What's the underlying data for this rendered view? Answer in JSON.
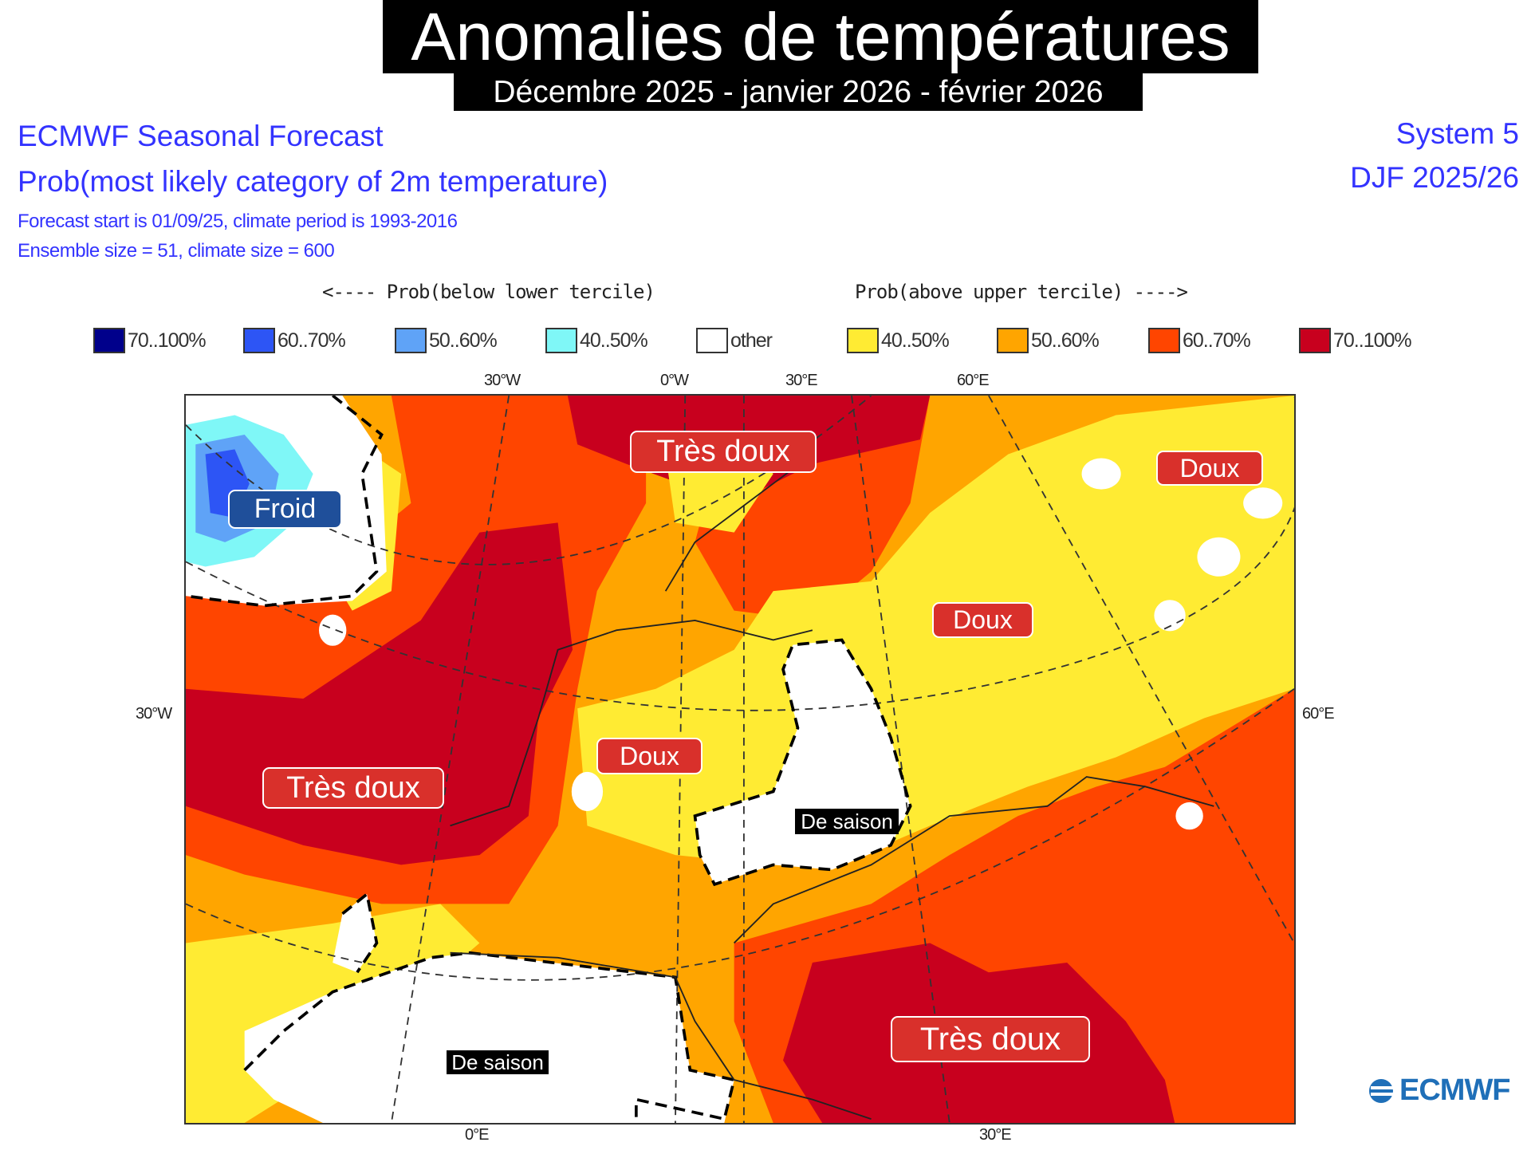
{
  "header": {
    "title": "Anomalies de températures",
    "subtitle": "Décembre 2025 - janvier 2026 - février 2026"
  },
  "info": {
    "line1": "ECMWF Seasonal Forecast",
    "line2": "Prob(most likely category of 2m temperature)",
    "line3": "Forecast start is 01/09/25, climate period is 1993-2016",
    "line4": "Ensemble size = 51, climate size = 600",
    "system": "System 5",
    "season": "DJF 2025/26"
  },
  "legend": {
    "below_label": "<---- Prob(below lower tercile)",
    "above_label": "Prob(above upper tercile) ---->",
    "items": [
      {
        "label": "70..100%",
        "color": "#00008b"
      },
      {
        "label": "60..70%",
        "color": "#2d55f5"
      },
      {
        "label": "50..60%",
        "color": "#5fa3f7"
      },
      {
        "label": "40..50%",
        "color": "#7ff7f7"
      },
      {
        "label": "other",
        "color": "#ffffff"
      },
      {
        "label": "40..50%",
        "color": "#ffeb33"
      },
      {
        "label": "50..60%",
        "color": "#ffa500"
      },
      {
        "label": "60..70%",
        "color": "#ff4500"
      },
      {
        "label": "70..100%",
        "color": "#c8001e"
      }
    ]
  },
  "map": {
    "lon_top": [
      "30°W",
      "0°W",
      "30°E",
      "60°E"
    ],
    "lat_left": "30°W",
    "lat_right": "60°E",
    "lon_bottom": [
      "0°E",
      "30°E"
    ],
    "annotations": {
      "froid": "Froid",
      "tres_doux_north": "Très doux",
      "doux_northeast": "Doux",
      "doux_east": "Doux",
      "doux_center": "Doux",
      "tres_doux_west": "Très doux",
      "de_saison_center": "De saison",
      "tres_doux_southeast": "Très doux",
      "de_saison_south": "De saison"
    }
  },
  "logo": {
    "text": "ECMWF"
  }
}
